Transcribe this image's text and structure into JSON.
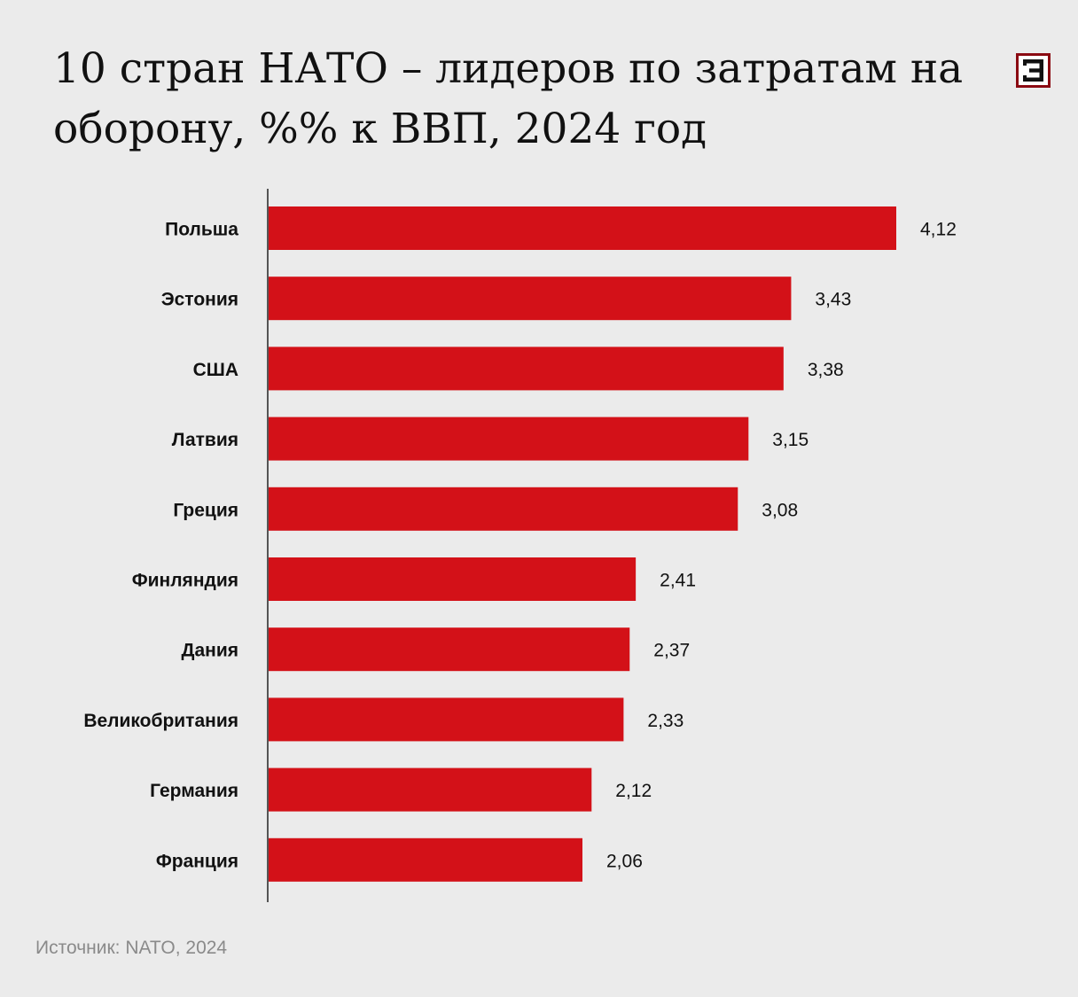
{
  "title": "10 стран НАТО – лидеров по затратам на оборону, %% к ВВП, 2024 год",
  "source": "Источник: NATO, 2024",
  "logo": {
    "icon": "publisher-logo-icon",
    "letter": "Э",
    "color": "#8b0a12"
  },
  "colors": {
    "bar": "#d31118",
    "text": "#111111",
    "axis": "#555555"
  },
  "chart_data": {
    "type": "bar",
    "orientation": "horizontal",
    "categories": [
      "Польша",
      "Эстония",
      "США",
      "Латвия",
      "Греция",
      "Финляндия",
      "Дания",
      "Великобритания",
      "Германия",
      "Франция"
    ],
    "values": [
      4.12,
      3.43,
      3.38,
      3.15,
      3.08,
      2.41,
      2.37,
      2.33,
      2.12,
      2.06
    ],
    "value_labels": [
      "4,12",
      "3,43",
      "3,38",
      "3,15",
      "3,08",
      "2,41",
      "2,37",
      "2,33",
      "2,12",
      "2,06"
    ],
    "xlim": [
      0,
      4.12
    ],
    "grid": false,
    "legend": "none"
  }
}
